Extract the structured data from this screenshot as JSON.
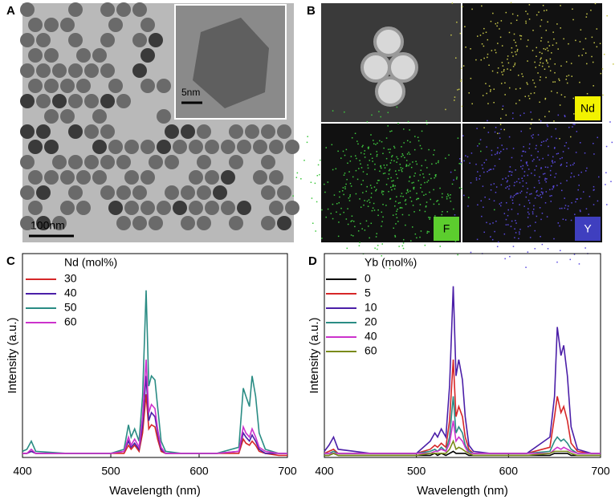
{
  "panels": {
    "a": {
      "label": "A",
      "scale_bar": "100nm",
      "inset_scale_bar": "5nm"
    },
    "b": {
      "label": "B",
      "maps": [
        "Nd",
        "F",
        "Y"
      ]
    }
  },
  "chart_data": [
    {
      "type": "line",
      "label": "C",
      "xlabel": "Wavelength (nm)",
      "ylabel": "Intensity (a.u.)",
      "legend_title": "Nd (mol%)",
      "xlim": [
        400,
        700
      ],
      "xticks": [
        400,
        500,
        600,
        700
      ],
      "ylim": [
        0,
        100
      ],
      "x": [
        400,
        405,
        410,
        415,
        450,
        500,
        515,
        520,
        523,
        527,
        532,
        536,
        540,
        543,
        546,
        550,
        553,
        557,
        562,
        580,
        620,
        645,
        650,
        653,
        657,
        660,
        664,
        668,
        675,
        690,
        700
      ],
      "series": [
        {
          "name": "30",
          "color": "#d62728",
          "values": [
            2,
            2,
            3,
            2,
            2,
            2,
            2,
            6,
            4,
            6,
            3,
            12,
            31,
            14,
            16,
            15,
            9,
            3,
            2,
            2,
            2,
            2,
            9,
            7,
            6,
            8,
            6,
            3,
            2,
            1,
            1
          ]
        },
        {
          "name": "40",
          "color": "#4b1fa8",
          "values": [
            2,
            2,
            3,
            2,
            2,
            2,
            3,
            8,
            5,
            7,
            4,
            16,
            40,
            18,
            22,
            20,
            12,
            4,
            2,
            2,
            2,
            3,
            12,
            10,
            8,
            11,
            8,
            4,
            2,
            2,
            2
          ]
        },
        {
          "name": "50",
          "color": "#2a8c84",
          "values": [
            3,
            4,
            8,
            3,
            2,
            2,
            4,
            16,
            10,
            14,
            8,
            30,
            82,
            35,
            40,
            38,
            25,
            8,
            3,
            2,
            2,
            5,
            34,
            30,
            25,
            40,
            30,
            12,
            4,
            2,
            2
          ]
        },
        {
          "name": "60",
          "color": "#cc33cc",
          "values": [
            2,
            2,
            4,
            2,
            2,
            2,
            3,
            10,
            6,
            9,
            5,
            20,
            48,
            22,
            26,
            24,
            14,
            5,
            2,
            2,
            2,
            3,
            15,
            12,
            10,
            14,
            10,
            5,
            3,
            2,
            2
          ]
        }
      ]
    },
    {
      "type": "line",
      "label": "D",
      "xlabel": "Wavelength (nm)",
      "ylabel": "Intensity (a.u.)",
      "legend_title": "Yb (mol%)",
      "xlim": [
        400,
        700
      ],
      "xticks": [
        400,
        500,
        600,
        700
      ],
      "ylim": [
        0,
        100
      ],
      "x": [
        400,
        405,
        410,
        415,
        450,
        500,
        515,
        520,
        523,
        527,
        532,
        536,
        540,
        543,
        546,
        550,
        553,
        557,
        562,
        580,
        620,
        645,
        650,
        653,
        657,
        660,
        664,
        668,
        675,
        690,
        700
      ],
      "series": [
        {
          "name": "0",
          "color": "#000000",
          "values": [
            1,
            1,
            2,
            1,
            1,
            1,
            1,
            2,
            1,
            2,
            1,
            2,
            3,
            2,
            2,
            2,
            2,
            1,
            1,
            1,
            1,
            1,
            2,
            2,
            2,
            2,
            2,
            1,
            1,
            1,
            1
          ]
        },
        {
          "name": "5",
          "color": "#d62728",
          "values": [
            2,
            3,
            4,
            2,
            2,
            2,
            4,
            6,
            5,
            7,
            5,
            18,
            48,
            20,
            25,
            20,
            10,
            4,
            2,
            2,
            2,
            5,
            20,
            30,
            22,
            25,
            18,
            7,
            3,
            2,
            2
          ]
        },
        {
          "name": "10",
          "color": "#4b1fa8",
          "values": [
            3,
            6,
            10,
            4,
            2,
            2,
            8,
            12,
            10,
            14,
            10,
            35,
            84,
            40,
            48,
            38,
            20,
            6,
            3,
            2,
            2,
            10,
            30,
            64,
            50,
            55,
            40,
            15,
            4,
            2,
            2
          ]
        },
        {
          "name": "20",
          "color": "#2a8c84",
          "values": [
            2,
            2,
            3,
            2,
            2,
            2,
            3,
            4,
            3,
            5,
            3,
            10,
            30,
            12,
            15,
            12,
            6,
            3,
            2,
            2,
            2,
            3,
            8,
            10,
            8,
            9,
            7,
            4,
            2,
            2,
            2
          ]
        },
        {
          "name": "40",
          "color": "#cc33cc",
          "values": [
            2,
            2,
            2,
            2,
            2,
            2,
            2,
            3,
            3,
            4,
            3,
            7,
            18,
            8,
            10,
            8,
            5,
            2,
            2,
            2,
            2,
            2,
            4,
            5,
            4,
            5,
            4,
            3,
            2,
            2,
            2
          ]
        },
        {
          "name": "60",
          "color": "#7a8a1a",
          "values": [
            1,
            1,
            2,
            1,
            1,
            1,
            2,
            2,
            2,
            2,
            2,
            4,
            8,
            4,
            5,
            4,
            3,
            2,
            1,
            1,
            1,
            2,
            3,
            3,
            3,
            3,
            3,
            2,
            1,
            1,
            1
          ]
        }
      ]
    }
  ]
}
